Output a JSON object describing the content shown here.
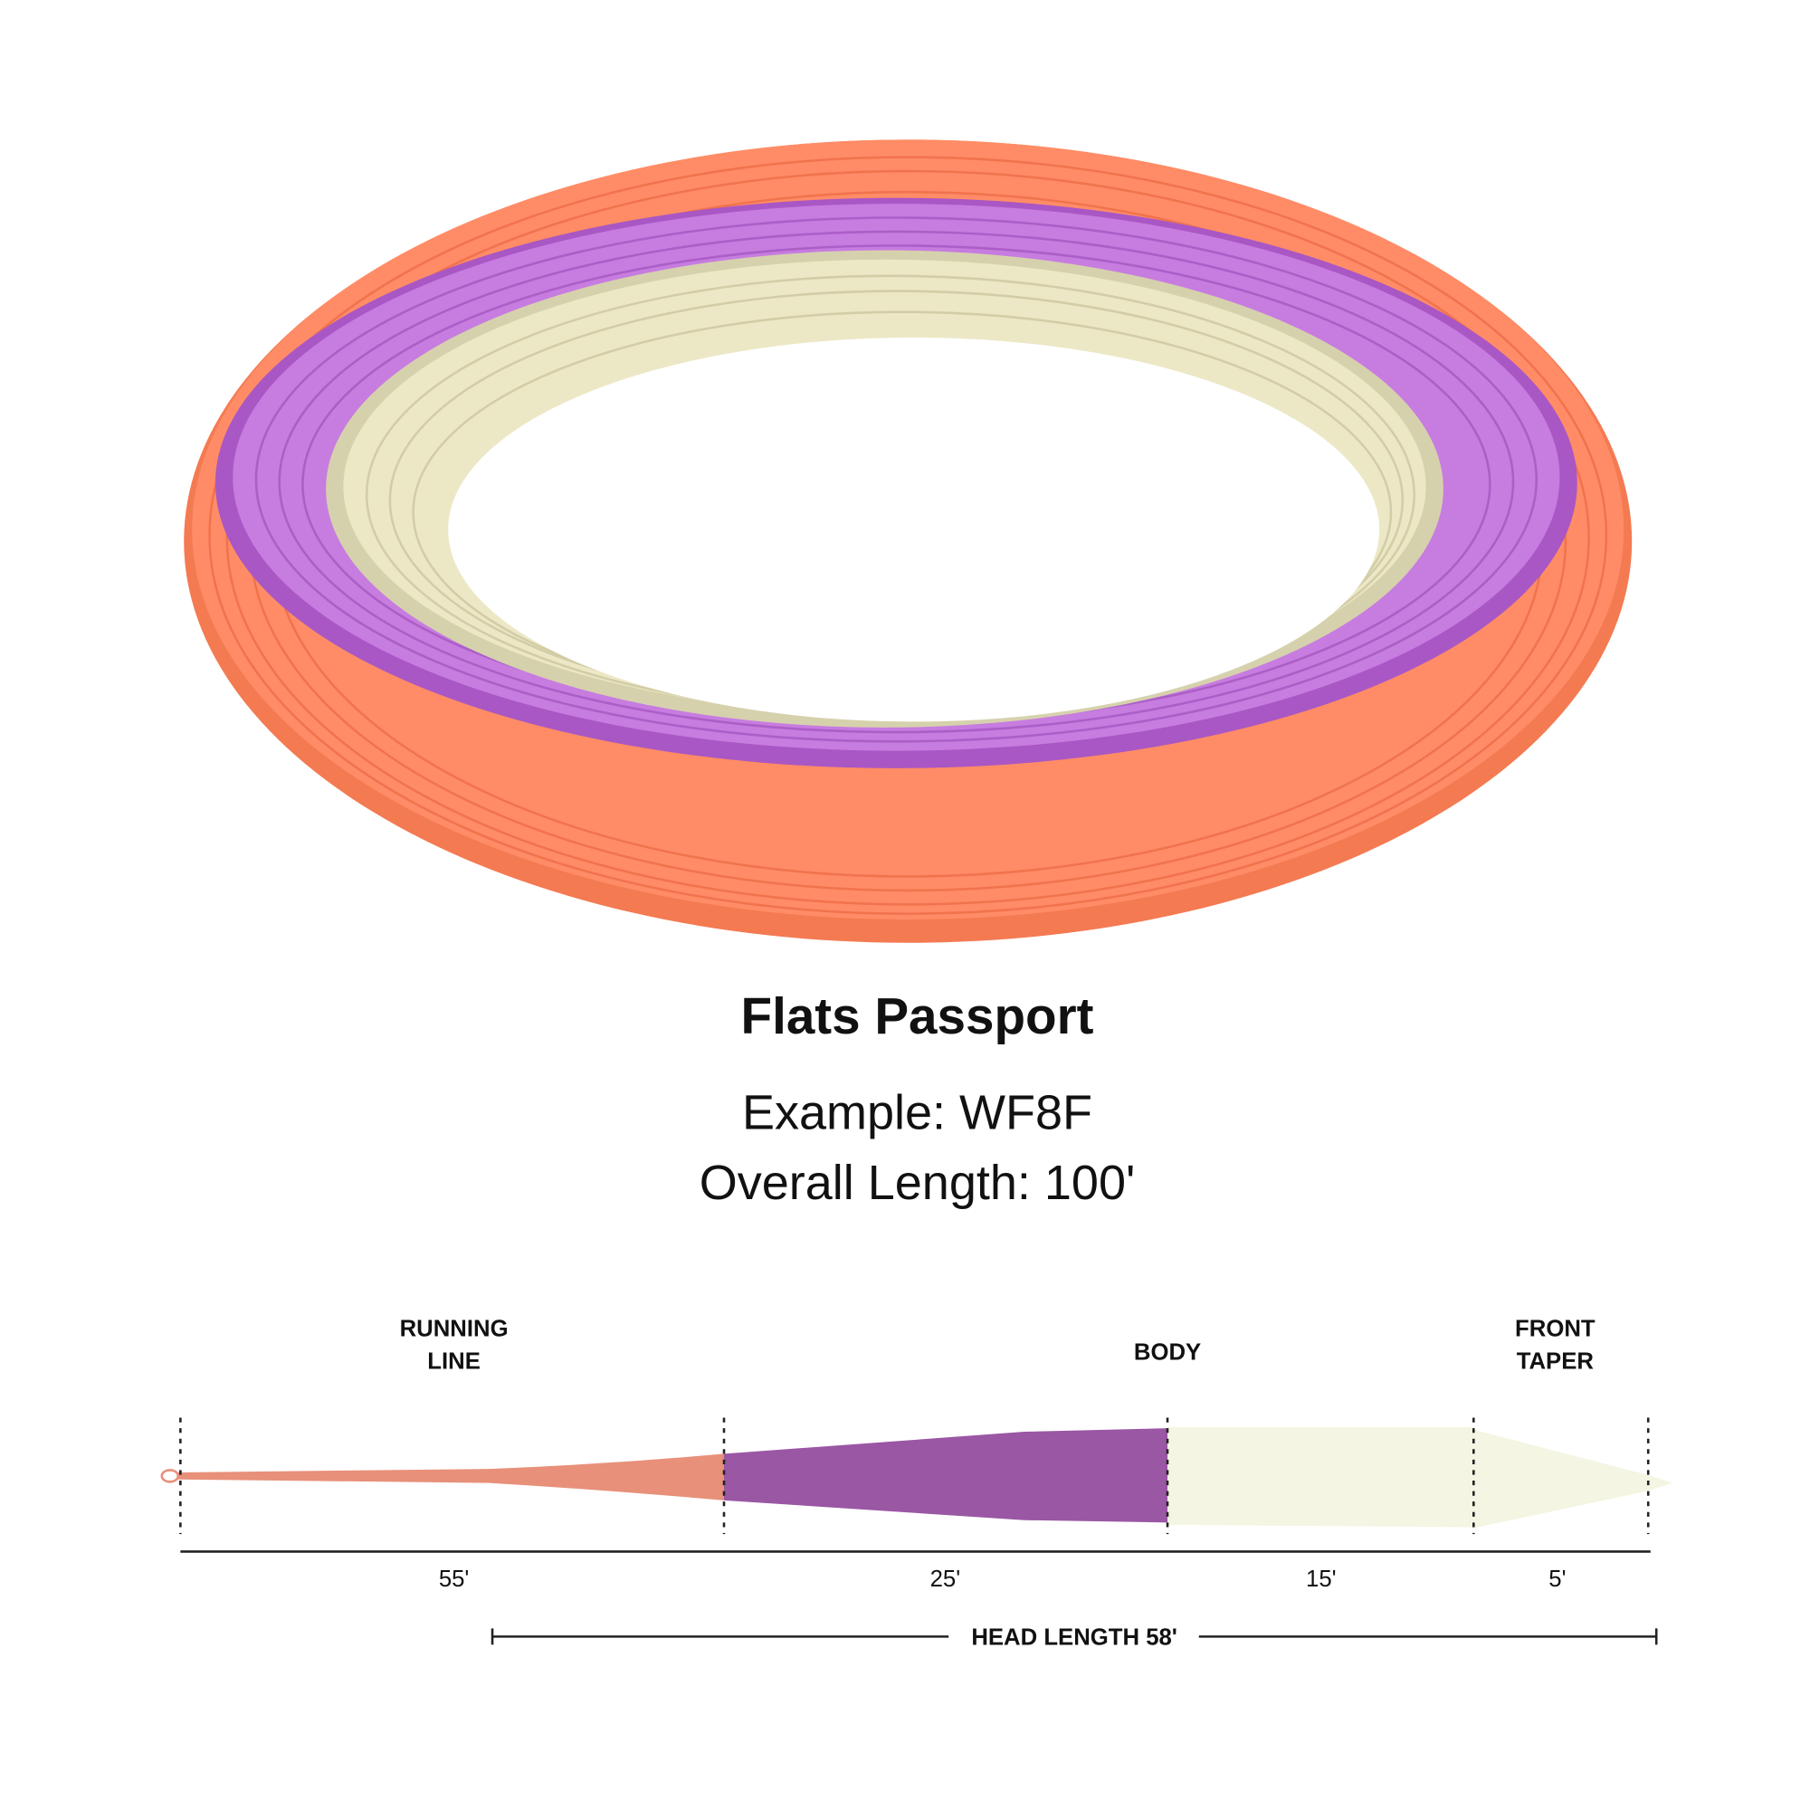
{
  "header": {
    "title": "Flats Passport",
    "example": "Example: WF8F",
    "overall_length": "Overall Length: 100'"
  },
  "diagram": {
    "section_labels": {
      "running_line": [
        "RUNNING",
        "LINE"
      ],
      "body": "BODY",
      "front_taper": [
        "FRONT",
        "TAPER"
      ]
    },
    "segment_lengths": [
      "55'",
      "25'",
      "15'",
      "5'"
    ],
    "head_length": "HEAD LENGTH 58'"
  }
}
